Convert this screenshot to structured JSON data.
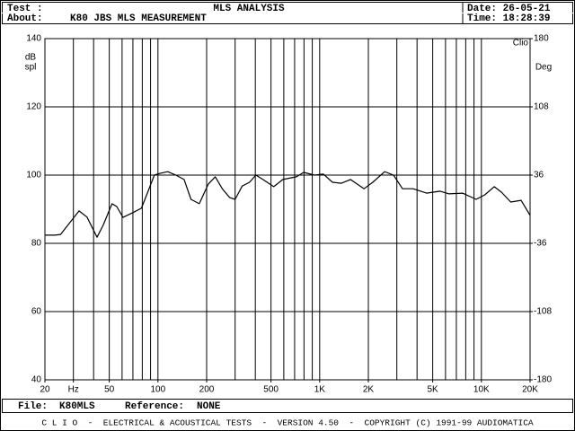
{
  "header": {
    "test_label": "Test :",
    "test": "MLS ANALYSIS",
    "about_label": "About:",
    "about": "K80 JBS MLS MEASUREMENT",
    "date": "Date: 26-05-21",
    "time": "Time: 18:28:39"
  },
  "chart_data": {
    "type": "line",
    "annotation": "Clio",
    "ylabel": [
      "dB",
      "spl"
    ],
    "y2label": "Deg",
    "color": "#000000",
    "x": [
      20,
      23,
      25,
      32.5,
      36.4,
      42,
      45.8,
      52,
      55.6,
      60.8,
      70,
      79,
      86,
      95,
      103,
      115,
      129,
      145,
      160,
      180,
      205,
      226,
      250,
      278,
      300,
      332,
      368,
      403,
      446,
      520,
      592,
      718,
      796,
      928,
      1055,
      1200,
      1360,
      1550,
      1880,
      2130,
      2520,
      2860,
      3250,
      3780,
      4580,
      5560,
      6310,
      7640,
      9280,
      10500,
      12000,
      13300,
      15200,
      17600,
      20000
    ],
    "values": [
      82.4,
      82.4,
      82.6,
      89.5,
      87.7,
      81.8,
      85.3,
      91.6,
      90.8,
      87.6,
      89,
      90.3,
      94.7,
      100,
      100.5,
      101,
      100,
      98.7,
      92.9,
      91.6,
      97.4,
      99.5,
      96,
      93.4,
      92.9,
      96.8,
      97.9,
      100,
      98.7,
      96.6,
      98.7,
      99.5,
      100.8,
      100,
      100.3,
      97.9,
      97.6,
      98.7,
      96,
      97.9,
      101,
      100,
      96,
      96,
      94.7,
      95.3,
      94.5,
      94.7,
      92.9,
      94.2,
      96.6,
      95,
      92.1,
      92.6,
      88.2
    ],
    "log_x": true,
    "xlim": [
      20,
      20000
    ],
    "xticks": [
      20,
      {
        "value": 30,
        "label": "Hz"
      },
      50,
      100,
      200,
      500,
      {
        "value": 1000,
        "label": "1K"
      },
      {
        "value": 2000,
        "label": "2K"
      },
      {
        "value": 5000,
        "label": "5K"
      },
      {
        "value": 10000,
        "label": "10K"
      },
      {
        "value": 20000,
        "label": "20K"
      }
    ],
    "xgrid": [
      20,
      30,
      40,
      50,
      60,
      70,
      80,
      90,
      100,
      200,
      300,
      400,
      500,
      600,
      700,
      800,
      900,
      1000,
      2000,
      3000,
      4000,
      5000,
      6000,
      7000,
      8000,
      9000,
      10000,
      20000
    ],
    "ylim": [
      40,
      140
    ],
    "yticks": [
      40,
      60,
      80,
      100,
      120,
      140
    ],
    "y2lim": [
      -180,
      180
    ],
    "y2ticks": [
      -180,
      -108,
      -36,
      36,
      108,
      180
    ],
    "grid": true
  },
  "footer": {
    "file_label": "File:",
    "file": "K80MLS",
    "reference_label": "Reference:",
    "reference": "NONE",
    "banner": "C L I O  -  ELECTRICAL & ACOUSTICAL TESTS  -  VERSION 4.50  -  COPYRIGHT (C) 1991-99 AUDIOMATICA"
  }
}
